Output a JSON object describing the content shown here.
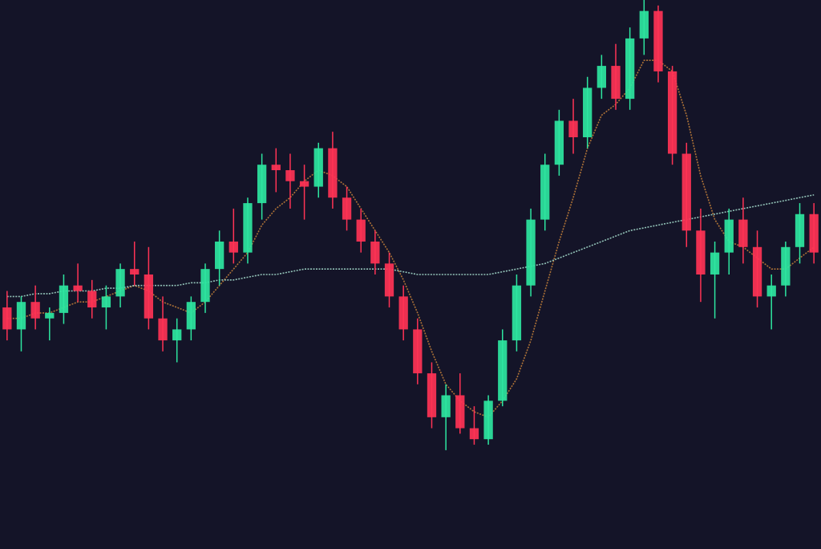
{
  "chart_data": {
    "type": "candlestick",
    "ylim": [
      0,
      100
    ],
    "up_color": "#2ee6a0",
    "down_color": "#ff3355",
    "open": [
      44,
      40,
      45,
      42,
      43,
      48,
      47,
      44,
      46,
      51,
      50,
      42,
      38,
      40,
      45,
      51,
      56,
      54,
      63,
      70,
      69,
      67,
      66,
      73,
      64,
      60,
      56,
      52,
      46,
      40,
      32,
      24,
      28,
      22,
      20,
      27,
      38,
      48,
      60,
      70,
      78,
      75,
      84,
      88,
      82,
      93,
      98,
      87,
      72,
      58,
      50,
      54,
      60,
      55,
      46,
      48,
      55,
      61
    ],
    "high": [
      47,
      46,
      48,
      44,
      50,
      52,
      49,
      48,
      52,
      56,
      55,
      46,
      42,
      46,
      52,
      58,
      62,
      64,
      72,
      73,
      72,
      70,
      74,
      76,
      66,
      62,
      58,
      54,
      48,
      42,
      34,
      30,
      32,
      26,
      28,
      40,
      50,
      62,
      72,
      80,
      82,
      86,
      90,
      92,
      95,
      100,
      99,
      88,
      74,
      62,
      56,
      62,
      64,
      58,
      50,
      56,
      63,
      63
    ],
    "low": [
      38,
      36,
      40,
      38,
      41,
      45,
      42,
      40,
      44,
      48,
      40,
      36,
      34,
      38,
      43,
      48,
      52,
      52,
      60,
      65,
      62,
      60,
      64,
      62,
      58,
      54,
      50,
      44,
      38,
      30,
      22,
      18,
      21,
      19,
      19,
      26,
      36,
      46,
      58,
      68,
      72,
      73,
      82,
      80,
      80,
      90,
      85,
      70,
      55,
      45,
      42,
      50,
      52,
      44,
      40,
      46,
      52,
      52
    ],
    "close": [
      40,
      45,
      42,
      43,
      48,
      47,
      44,
      46,
      51,
      50,
      42,
      38,
      40,
      45,
      51,
      56,
      54,
      63,
      70,
      69,
      67,
      66,
      73,
      64,
      60,
      56,
      52,
      46,
      40,
      32,
      24,
      28,
      22,
      20,
      27,
      38,
      48,
      60,
      70,
      78,
      75,
      84,
      88,
      82,
      93,
      98,
      87,
      72,
      58,
      50,
      54,
      60,
      55,
      46,
      48,
      55,
      61,
      54
    ],
    "lines": [
      {
        "color": "#c8823a",
        "values": [
          42,
          42,
          43,
          43,
          44,
          45,
          45,
          46,
          47,
          48,
          47,
          45,
          44,
          43,
          45,
          48,
          51,
          54,
          59,
          62,
          64,
          67,
          69,
          68,
          66,
          62,
          58,
          54,
          49,
          43,
          36,
          30,
          27,
          25,
          24,
          27,
          31,
          38,
          47,
          56,
          64,
          73,
          79,
          81,
          84,
          89,
          89,
          87,
          79,
          68,
          60,
          56,
          55,
          53,
          51,
          51,
          53,
          55
        ]
      },
      {
        "color": "#a8e0d0",
        "values": [
          46,
          46,
          46.5,
          46.5,
          47,
          47,
          47,
          47.5,
          47.5,
          48,
          48,
          48,
          48,
          48.5,
          48.5,
          49,
          49,
          49.5,
          50,
          50,
          50.5,
          51,
          51,
          51,
          51,
          51,
          51,
          51,
          50.5,
          50,
          50,
          50,
          50,
          50,
          50,
          50.5,
          51,
          51.5,
          52,
          53,
          54,
          55,
          56,
          57,
          58,
          58.5,
          59,
          59.5,
          60,
          60.5,
          61,
          61.5,
          62,
          62.5,
          63,
          63.5,
          64,
          64.5
        ]
      }
    ]
  }
}
